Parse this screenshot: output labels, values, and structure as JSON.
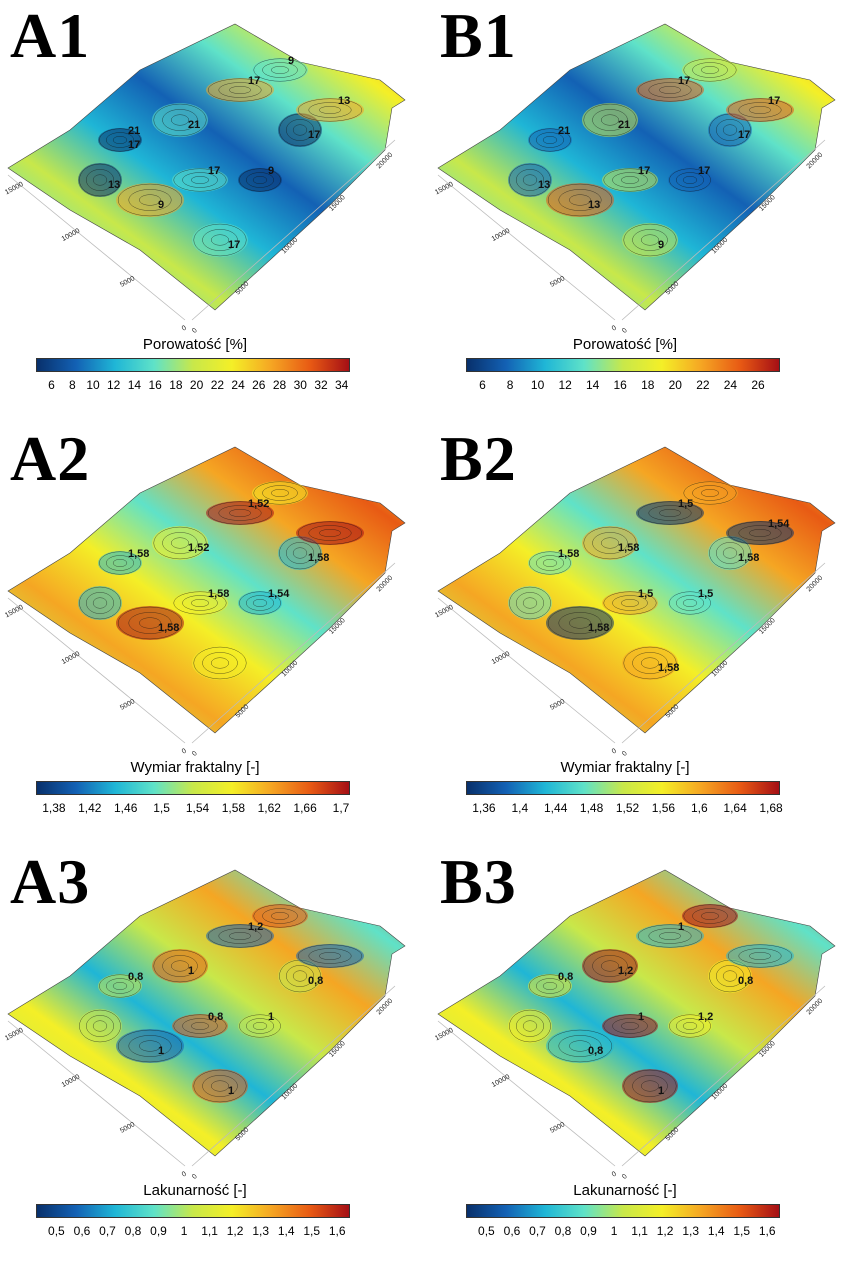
{
  "chart_data": [
    {
      "type": "surface",
      "panel": "A1",
      "zlabel": "Porowatość [%]",
      "colorbar_ticks": [
        "6",
        "8",
        "10",
        "12",
        "14",
        "16",
        "18",
        "20",
        "22",
        "24",
        "26",
        "28",
        "30",
        "32",
        "34"
      ],
      "colorbar_range": [
        4.5,
        34.8
      ],
      "x_ticks": [
        "0",
        "5000",
        "10000",
        "15000"
      ],
      "y_ticks": [
        "0",
        "5000",
        "10000",
        "15000",
        "20000"
      ],
      "contour_labels": [
        "21",
        "21",
        "17",
        "17",
        "17",
        "9",
        "9",
        "17",
        "13",
        "13",
        "9",
        "17"
      ],
      "colors": [
        "#08306b",
        "#1361b4",
        "#1fb6d6",
        "#5fe2c8",
        "#c8e84a",
        "#f4ef27",
        "#f5a623",
        "#e85a14",
        "#a50f15"
      ]
    },
    {
      "type": "surface",
      "panel": "B1",
      "zlabel": "Porowatość [%]",
      "colorbar_ticks": [
        "6",
        "8",
        "10",
        "12",
        "14",
        "16",
        "18",
        "20",
        "22",
        "24",
        "26"
      ],
      "colorbar_range": [
        4.8,
        27.6
      ],
      "x_ticks": [
        "0",
        "5000",
        "10000",
        "15000"
      ],
      "y_ticks": [
        "0",
        "5000",
        "10000",
        "15000",
        "20000"
      ],
      "contour_labels": [
        "21",
        "21",
        "17",
        "17",
        "17",
        "13",
        "17",
        "9",
        "17",
        "13"
      ],
      "colors": [
        "#08306b",
        "#1361b4",
        "#1fb6d6",
        "#5fe2c8",
        "#c8e84a",
        "#f4ef27",
        "#f5a623",
        "#e85a14",
        "#a50f15"
      ]
    },
    {
      "type": "surface",
      "panel": "A2",
      "zlabel": "Wymiar fraktalny [-]",
      "colorbar_ticks": [
        "1,38",
        "1,42",
        "1,46",
        "1,5",
        "1,54",
        "1,58",
        "1,62",
        "1,66",
        "1,7"
      ],
      "colorbar_range": [
        1.36,
        1.71
      ],
      "x_ticks": [
        "0",
        "5000",
        "10000",
        "15000"
      ],
      "y_ticks": [
        "0",
        "5000",
        "10000",
        "15000",
        "20000"
      ],
      "contour_labels": [
        "1,58",
        "1,52",
        "1,52",
        "1,58",
        "1,58",
        "1,58",
        "1,54"
      ],
      "colors": [
        "#08306b",
        "#1361b4",
        "#1fb6d6",
        "#5fe2c8",
        "#c8e84a",
        "#f4ef27",
        "#f5a623",
        "#e85a14",
        "#a50f15"
      ]
    },
    {
      "type": "surface",
      "panel": "B2",
      "zlabel": "Wymiar fraktalny [-]",
      "colorbar_ticks": [
        "1,36",
        "1,4",
        "1,44",
        "1,48",
        "1,52",
        "1,56",
        "1,6",
        "1,64",
        "1,68"
      ],
      "colorbar_range": [
        1.34,
        1.69
      ],
      "x_ticks": [
        "0",
        "5000",
        "10000",
        "15000"
      ],
      "y_ticks": [
        "0",
        "5000",
        "10000",
        "15000",
        "20000"
      ],
      "contour_labels": [
        "1,58",
        "1,58",
        "1,5",
        "1,58",
        "1,5",
        "1,58",
        "1,5",
        "1,58",
        "1,54"
      ],
      "colors": [
        "#08306b",
        "#1361b4",
        "#1fb6d6",
        "#5fe2c8",
        "#c8e84a",
        "#f4ef27",
        "#f5a623",
        "#e85a14",
        "#a50f15"
      ]
    },
    {
      "type": "surface",
      "panel": "A3",
      "zlabel": "Lakunarność [-]",
      "colorbar_ticks": [
        "0,5",
        "0,6",
        "0,7",
        "0,8",
        "0,9",
        "1",
        "1,1",
        "1,2",
        "1,3",
        "1,4",
        "1,5",
        "1,6"
      ],
      "colorbar_range": [
        0.42,
        1.65
      ],
      "x_ticks": [
        "0",
        "5000",
        "10000",
        "15000"
      ],
      "y_ticks": [
        "0",
        "5000",
        "10000",
        "15000",
        "20000"
      ],
      "contour_labels": [
        "0,8",
        "1",
        "1,2",
        "0,8",
        "0,8",
        "1",
        "1",
        "1"
      ],
      "colors": [
        "#08306b",
        "#1361b4",
        "#1fb6d6",
        "#5fe2c8",
        "#c8e84a",
        "#f4ef27",
        "#f5a623",
        "#e85a14",
        "#a50f15"
      ]
    },
    {
      "type": "surface",
      "panel": "B3",
      "zlabel": "Lakunarność [-]",
      "colorbar_ticks": [
        "0,5",
        "0,6",
        "0,7",
        "0,8",
        "0,9",
        "1",
        "1,1",
        "1,2",
        "1,3",
        "1,4",
        "1,5",
        "1,6"
      ],
      "colorbar_range": [
        0.42,
        1.65
      ],
      "x_ticks": [
        "0",
        "5000",
        "10000",
        "15000"
      ],
      "y_ticks": [
        "0",
        "5000",
        "10000",
        "15000",
        "20000"
      ],
      "contour_labels": [
        "0,8",
        "1,2",
        "1",
        "0,8",
        "1",
        "0,8",
        "1,2",
        "1"
      ],
      "colors": [
        "#08306b",
        "#1361b4",
        "#1fb6d6",
        "#5fe2c8",
        "#c8e84a",
        "#f4ef27",
        "#f5a623",
        "#e85a14",
        "#a50f15"
      ]
    }
  ]
}
